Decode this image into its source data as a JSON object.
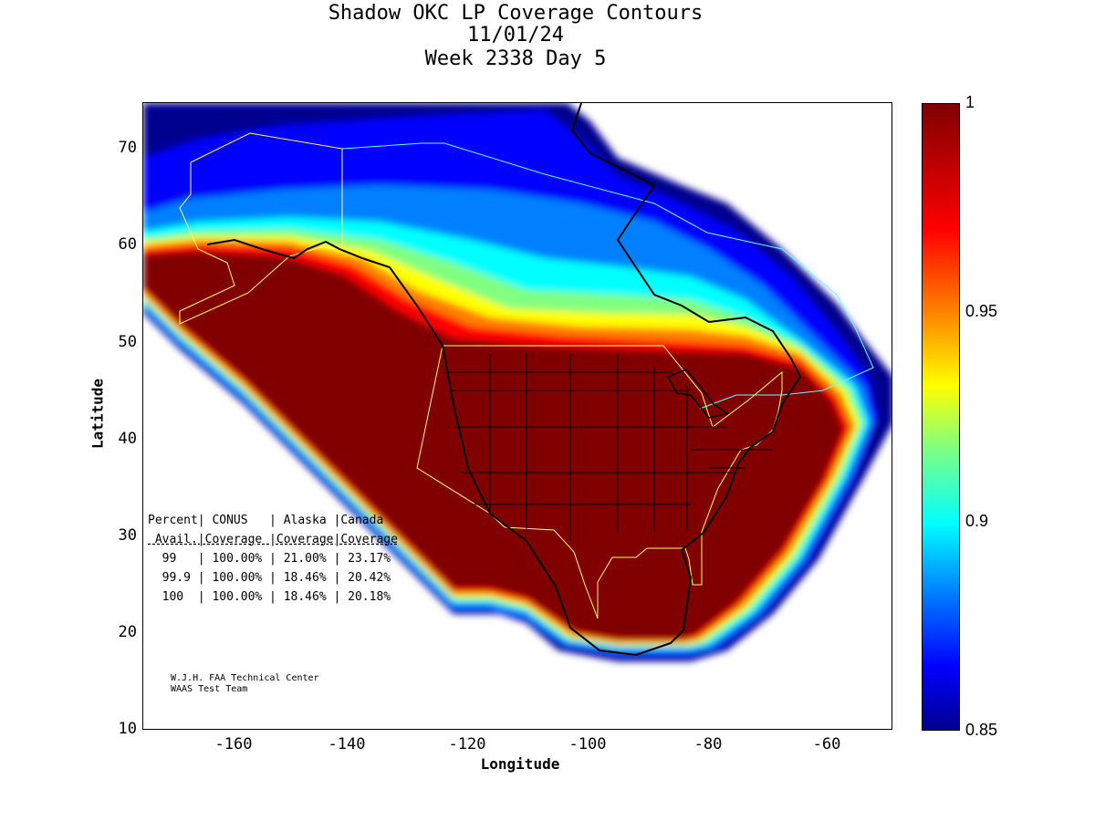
{
  "title": {
    "line1": "Shadow OKC LP Coverage Contours",
    "line2": "11/01/24",
    "line3": "Week 2338 Day 5"
  },
  "axes": {
    "xlabel": "Longitude",
    "ylabel": "Latitude",
    "xlim": [
      -175,
      -50
    ],
    "ylim": [
      10,
      75
    ],
    "xticks": [
      "-160",
      "-140",
      "-120",
      "-100",
      "-80",
      "-60"
    ],
    "yticks": [
      "70",
      "60",
      "50",
      "40",
      "30",
      "20",
      "10"
    ]
  },
  "colorbar": {
    "min": 0.85,
    "max": 1,
    "tick_labels": [
      "1",
      "0.95",
      "0.9",
      "0.85"
    ],
    "colormap": "jet"
  },
  "stats_table": {
    "header1": "Percent| CONUS   | Alaska |Canada",
    "header2": " Avail.|Coverage |Coverage|Coverage",
    "rows": [
      "  99   | 100.00% | 21.00% | 23.17%",
      "  99.9 | 100.00% | 18.46% | 20.42%",
      "  100  | 100.00% | 18.46% | 20.18%"
    ]
  },
  "credit": {
    "line1": "W.J.H. FAA Technical Center",
    "line2": "WAAS Test Team"
  },
  "colors": {
    "full_coverage": "#800000",
    "low_coverage": "#00008f",
    "conus_boundary": "#ffff66",
    "alaska_canada_boundary": "#66ffff"
  },
  "chart_data": {
    "type": "heatmap",
    "title": "Shadow OKC LP Coverage Contours",
    "xlabel": "Longitude",
    "ylabel": "Latitude",
    "xlim": [
      -175,
      -50
    ],
    "ylim": [
      10,
      75
    ],
    "zlim": [
      0.85,
      1
    ],
    "coverage": [
      {
        "region": "CONUS",
        "avail_99": "100.00%",
        "avail_99_9": "100.00%",
        "avail_100": "100.00%"
      },
      {
        "region": "Alaska",
        "avail_99": "21.00%",
        "avail_99_9": "18.46%",
        "avail_100": "18.46%"
      },
      {
        "region": "Canada",
        "avail_99": "23.17%",
        "avail_99_9": "20.42%",
        "avail_100": "20.18%"
      }
    ]
  }
}
